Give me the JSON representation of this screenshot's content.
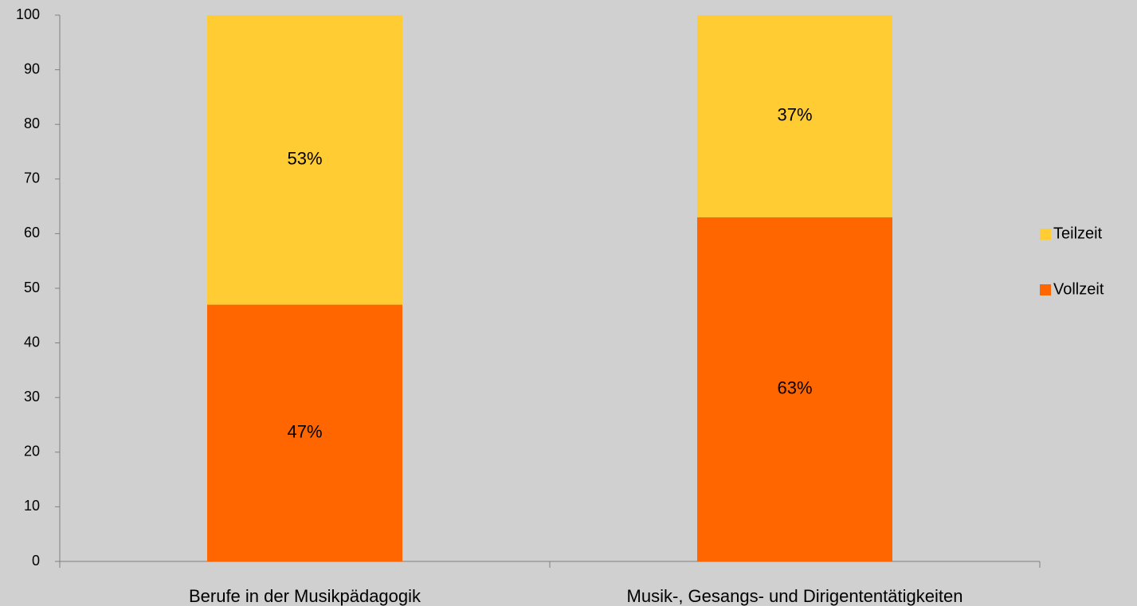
{
  "chart_data": {
    "type": "stacked_bar",
    "categories": [
      "Berufe in der Musikpädagogik",
      "Musik-, Gesangs- und Dirigententätigkeiten"
    ],
    "series": [
      {
        "name": "Vollzeit",
        "color": "#ff6600",
        "values": [
          47,
          63
        ],
        "value_labels": [
          "47%",
          "63%"
        ]
      },
      {
        "name": "Teilzeit",
        "color": "#ffcc33",
        "values": [
          53,
          37
        ],
        "value_labels": [
          "53%",
          "37%"
        ]
      }
    ],
    "ylim": [
      0,
      100
    ],
    "yticks": [
      0,
      10,
      20,
      30,
      40,
      50,
      60,
      70,
      80,
      90,
      100
    ],
    "legend": "right",
    "grid": false
  }
}
